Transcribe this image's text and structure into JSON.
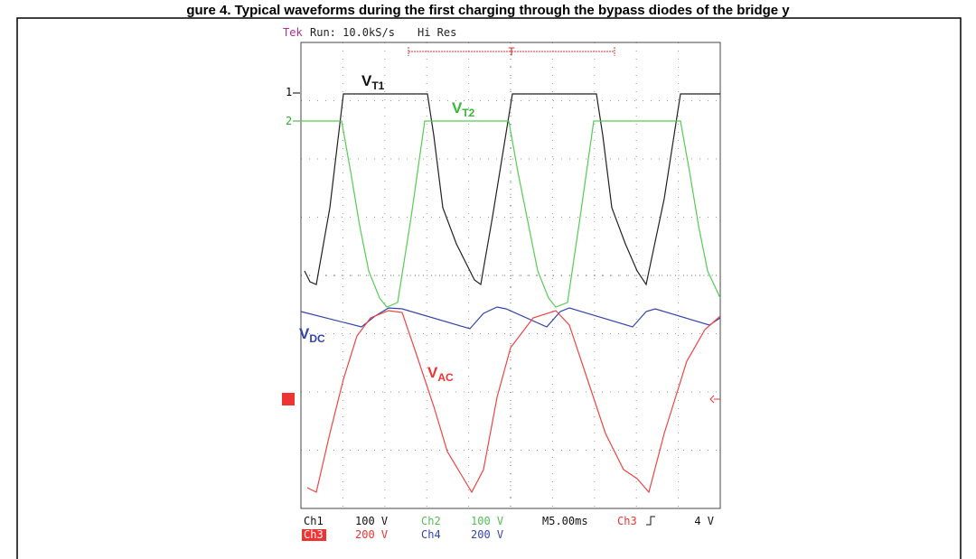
{
  "figure": {
    "caption": "gure 4. Typical waveforms during the first charging through the bypass diodes of the bridge y",
    "scope": {
      "brand": "Tek",
      "status": "Run: 10.0kS/s",
      "mode": "Hi Res",
      "trigger": "T",
      "markers": [
        "1",
        "2"
      ],
      "traces": [
        {
          "main": "V",
          "sub": "T1"
        },
        {
          "main": "V",
          "sub": "T2"
        },
        {
          "main": "V",
          "sub": "DC"
        },
        {
          "main": "V",
          "sub": "AC"
        }
      ],
      "readout": {
        "row1": [
          "Ch1",
          "100 V",
          "Ch2",
          "100 V",
          "M5.00ms",
          "Ch3",
          "4 V"
        ],
        "row2": [
          "Ch3",
          "200 V",
          "Ch4",
          "200 V"
        ]
      }
    }
  }
}
